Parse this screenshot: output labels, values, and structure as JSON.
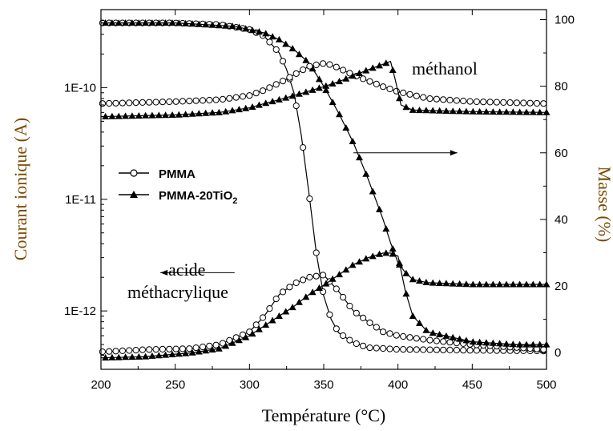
{
  "chart_data": {
    "type": "line",
    "xlabel": "Température (°C)",
    "ylabel_left": "Courant ionique (A)",
    "ylabel_right": "Masse (%)",
    "xlim": [
      200,
      500
    ],
    "x_ticks": [
      200,
      250,
      300,
      350,
      400,
      450,
      500
    ],
    "y_left_scale": "log",
    "y_left_lim": [
      3e-13,
      5e-10
    ],
    "y_left_ticks": [
      {
        "value": 1e-12,
        "label": "1E-12"
      },
      {
        "value": 1e-11,
        "label": "1E-11"
      },
      {
        "value": 1e-10,
        "label": "1E-10"
      }
    ],
    "y_right_lim": [
      -5,
      103
    ],
    "y_right_ticks": [
      0,
      20,
      40,
      60,
      80,
      100
    ],
    "grid": false,
    "legend": {
      "placement": "center-left",
      "entries": [
        {
          "name": "PMMA",
          "marker": "open-circle"
        },
        {
          "name": "PMMA-20TiO",
          "sub": "2",
          "marker": "filled-triangle"
        }
      ]
    },
    "annotations": {
      "methanol": "méthanol",
      "acid_line1": "acide",
      "acid_line2": "méthacrylique"
    },
    "arrows": [
      {
        "from": [
          370,
          60
        ],
        "to": [
          440,
          60
        ],
        "axis": "right"
      },
      {
        "from": [
          290,
          2.2e-12
        ],
        "to": [
          240,
          2.2e-12
        ],
        "axis": "left"
      }
    ],
    "series": [
      {
        "name": "PMMA",
        "quantity": "mass",
        "axis": "right",
        "marker": "open-circle",
        "x": [
          200,
          250,
          280,
          300,
          310,
          320,
          325,
          330,
          335,
          340,
          345,
          350,
          355,
          360,
          370,
          380,
          400,
          450,
          500
        ],
        "y": [
          99,
          99,
          98.5,
          97,
          95,
          90,
          85,
          78,
          65,
          48,
          30,
          17,
          10,
          6,
          3,
          1.5,
          1,
          0.7,
          0.5
        ]
      },
      {
        "name": "PMMA-20TiO2",
        "quantity": "mass",
        "axis": "right",
        "marker": "filled-triangle",
        "x": [
          200,
          250,
          290,
          310,
          320,
          330,
          340,
          350,
          360,
          370,
          380,
          390,
          395,
          400,
          405,
          410,
          420,
          450,
          500
        ],
        "y": [
          99,
          99,
          98,
          96,
          94,
          91,
          87,
          80,
          72,
          63,
          52,
          40,
          33,
          27,
          24,
          22,
          21,
          20.5,
          20.5
        ]
      },
      {
        "name": "PMMA",
        "quantity": "methanol",
        "axis": "left",
        "marker": "open-circle",
        "x": [
          200,
          250,
          280,
          300,
          310,
          320,
          330,
          340,
          350,
          355,
          360,
          370,
          380,
          390,
          400,
          420,
          450,
          500
        ],
        "y": [
          7.2e-11,
          7.5e-11,
          7.8e-11,
          8.5e-11,
          9.5e-11,
          1.1e-10,
          1.3e-10,
          1.55e-10,
          1.65e-10,
          1.6e-10,
          1.5e-10,
          1.3e-10,
          1.15e-10,
          1.02e-10,
          9.2e-11,
          8e-11,
          7.5e-11,
          7.2e-11
        ]
      },
      {
        "name": "PMMA-20TiO2",
        "quantity": "methanol",
        "axis": "left",
        "marker": "filled-triangle",
        "x": [
          200,
          250,
          280,
          300,
          310,
          320,
          330,
          340,
          350,
          360,
          370,
          380,
          390,
          395,
          398,
          402,
          410,
          450,
          500
        ],
        "y": [
          5.5e-11,
          5.7e-11,
          6e-11,
          6.6e-11,
          7.2e-11,
          7.8e-11,
          8.5e-11,
          9.3e-11,
          1.02e-10,
          1.13e-10,
          1.28e-10,
          1.45e-10,
          1.62e-10,
          1.72e-10,
          1.2e-10,
          7e-11,
          6.3e-11,
          6.1e-11,
          6e-11
        ]
      },
      {
        "name": "PMMA",
        "quantity": "methacrylic_acid",
        "axis": "left",
        "marker": "open-circle",
        "x": [
          200,
          230,
          260,
          280,
          300,
          310,
          320,
          330,
          340,
          350,
          360,
          370,
          380,
          390,
          400,
          420,
          450,
          480,
          500
        ],
        "y": [
          4.3e-13,
          4.5e-13,
          4.6e-13,
          5e-13,
          6.5e-13,
          9e-13,
          1.4e-12,
          1.75e-12,
          2e-12,
          2.1e-12,
          1.5e-12,
          1e-12,
          8e-13,
          6.5e-13,
          6e-13,
          5.5e-13,
          5e-13,
          4.7e-13,
          4.5e-13
        ]
      },
      {
        "name": "PMMA-20TiO2",
        "quantity": "methacrylic_acid",
        "axis": "left",
        "marker": "filled-triangle",
        "x": [
          200,
          230,
          260,
          280,
          300,
          320,
          330,
          340,
          350,
          360,
          370,
          380,
          390,
          395,
          400,
          405,
          410,
          420,
          450,
          480,
          500
        ],
        "y": [
          3.8e-13,
          3.9e-13,
          4.2e-13,
          4.6e-13,
          6e-13,
          9e-13,
          1.1e-12,
          1.4e-12,
          1.7e-12,
          2.1e-12,
          2.6e-12,
          3e-12,
          3.3e-12,
          3.3e-12,
          3.1e-12,
          1.5e-12,
          9e-13,
          6.5e-13,
          5.3e-13,
          5e-13,
          5e-13
        ]
      }
    ]
  }
}
